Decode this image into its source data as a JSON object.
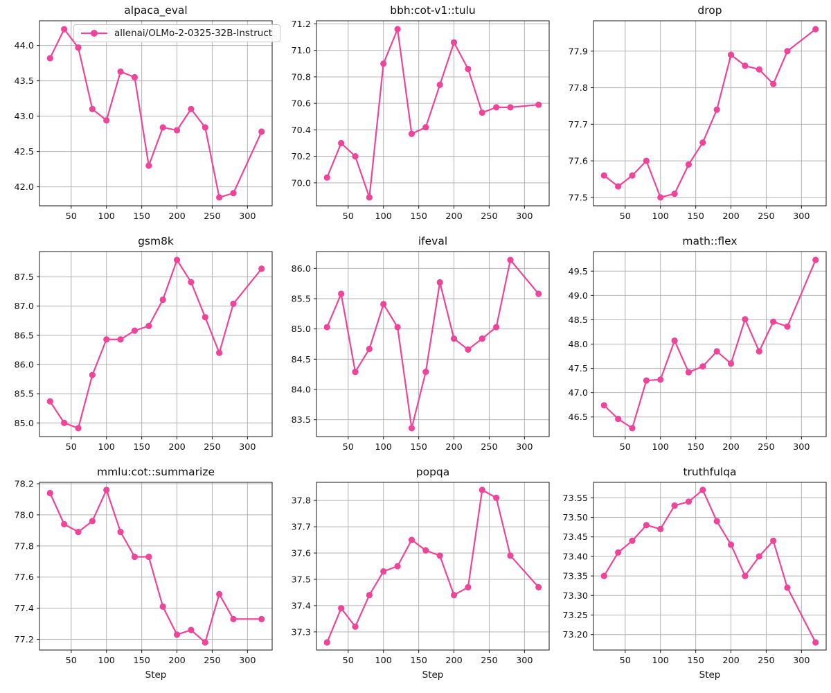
{
  "figure": {
    "xlabel": "Step",
    "legend_label": "allenai/OLMo-2-0325-32B-Instruct",
    "accent_color": "#ee4499",
    "grid_color": "#b3b3b3",
    "spine_color": "#1a1a1a",
    "steps": [
      20,
      40,
      60,
      80,
      100,
      120,
      140,
      160,
      180,
      200,
      220,
      240,
      260,
      280,
      320
    ],
    "xticks": [
      50,
      100,
      150,
      200,
      250,
      300
    ],
    "xlim": [
      5,
      335
    ]
  },
  "chart_data": [
    {
      "type": "line",
      "title": "alpaca_eval",
      "values": [
        43.82,
        44.23,
        43.97,
        43.1,
        42.94,
        43.63,
        43.55,
        42.3,
        42.84,
        42.8,
        43.1,
        42.84,
        41.85,
        41.91,
        42.78
      ],
      "yticks": [
        42.0,
        42.5,
        43.0,
        43.5,
        44.0
      ],
      "ytick_labels": [
        "42.0",
        "42.5",
        "43.0",
        "43.5",
        "44.0"
      ],
      "ylim": [
        41.731,
        44.349
      ],
      "grid": true,
      "has_legend": true
    },
    {
      "type": "line",
      "title": "bbh:cot-v1::tulu",
      "values": [
        70.04,
        70.3,
        70.2,
        69.89,
        70.9,
        71.16,
        70.37,
        70.42,
        70.74,
        71.06,
        70.86,
        70.53,
        70.57,
        70.57,
        70.59
      ],
      "yticks": [
        70.0,
        70.2,
        70.4,
        70.6,
        70.8,
        71.0,
        71.2
      ],
      "ytick_labels": [
        "70.0",
        "70.2",
        "70.4",
        "70.6",
        "70.8",
        "71.0",
        "71.2"
      ],
      "ylim": [
        69.8265,
        71.2235
      ],
      "grid": true,
      "has_legend": false
    },
    {
      "type": "line",
      "title": "drop",
      "values": [
        77.56,
        77.53,
        77.56,
        77.6,
        77.5,
        77.51,
        77.59,
        77.65,
        77.74,
        77.89,
        77.86,
        77.85,
        77.81,
        77.9,
        77.96
      ],
      "yticks": [
        77.5,
        77.6,
        77.7,
        77.8,
        77.9
      ],
      "ytick_labels": [
        "77.5",
        "77.6",
        "77.7",
        "77.8",
        "77.9"
      ],
      "ylim": [
        77.477,
        77.983
      ],
      "grid": true,
      "has_legend": false
    },
    {
      "type": "line",
      "title": "gsm8k",
      "values": [
        85.37,
        85.0,
        84.91,
        85.82,
        86.43,
        86.43,
        86.58,
        86.66,
        87.11,
        87.79,
        87.41,
        86.81,
        86.2,
        87.04,
        87.64
      ],
      "yticks": [
        85.0,
        85.5,
        86.0,
        86.5,
        87.0,
        87.5
      ],
      "ytick_labels": [
        "85.0",
        "85.5",
        "86.0",
        "86.5",
        "87.0",
        "87.5"
      ],
      "ylim": [
        84.766,
        87.934
      ],
      "grid": true,
      "has_legend": false
    },
    {
      "type": "line",
      "title": "ifeval",
      "values": [
        85.03,
        85.58,
        84.29,
        84.67,
        85.41,
        85.03,
        83.36,
        84.29,
        85.77,
        84.84,
        84.66,
        84.84,
        85.03,
        86.14,
        85.58
      ],
      "yticks": [
        83.5,
        84.0,
        84.5,
        85.0,
        85.5,
        86.0
      ],
      "ytick_labels": [
        "83.5",
        "84.0",
        "84.5",
        "85.0",
        "85.5",
        "86.0"
      ],
      "ylim": [
        83.221,
        86.279
      ],
      "grid": true,
      "has_legend": false
    },
    {
      "type": "line",
      "title": "math::flex",
      "values": [
        46.74,
        46.46,
        46.27,
        47.25,
        47.27,
        48.07,
        47.42,
        47.54,
        47.85,
        47.6,
        48.51,
        47.85,
        48.46,
        48.36,
        49.73
      ],
      "yticks": [
        46.5,
        47.0,
        47.5,
        48.0,
        48.5,
        49.0,
        49.5
      ],
      "ytick_labels": [
        "46.5",
        "47.0",
        "47.5",
        "48.0",
        "48.5",
        "49.0",
        "49.5"
      ],
      "ylim": [
        46.097,
        49.903
      ],
      "grid": true,
      "has_legend": false
    },
    {
      "type": "line",
      "title": "mmlu:cot::summarize",
      "values": [
        78.14,
        77.94,
        77.89,
        77.96,
        78.16,
        77.89,
        77.73,
        77.73,
        77.41,
        77.23,
        77.26,
        77.18,
        77.49,
        77.33,
        77.33
      ],
      "yticks": [
        77.2,
        77.4,
        77.6,
        77.8,
        78.0,
        78.2
      ],
      "ytick_labels": [
        "77.2",
        "77.4",
        "77.6",
        "77.8",
        "78.0",
        "78.2"
      ],
      "ylim": [
        77.131,
        78.209
      ],
      "grid": true,
      "has_legend": false
    },
    {
      "type": "line",
      "title": "popqa",
      "values": [
        37.26,
        37.39,
        37.32,
        37.44,
        37.53,
        37.55,
        37.65,
        37.61,
        37.59,
        37.44,
        37.47,
        37.84,
        37.81,
        37.59,
        37.47
      ],
      "yticks": [
        37.3,
        37.4,
        37.5,
        37.6,
        37.7,
        37.8
      ],
      "ytick_labels": [
        "37.3",
        "37.4",
        "37.5",
        "37.6",
        "37.7",
        "37.8"
      ],
      "ylim": [
        37.231,
        37.869
      ],
      "grid": true,
      "has_legend": false
    },
    {
      "type": "line",
      "title": "truthfulqa",
      "values": [
        73.35,
        73.41,
        73.44,
        73.48,
        73.47,
        73.53,
        73.54,
        73.57,
        73.49,
        73.43,
        73.35,
        73.4,
        73.44,
        73.32,
        73.18
      ],
      "yticks": [
        73.2,
        73.25,
        73.3,
        73.35,
        73.4,
        73.45,
        73.5,
        73.55
      ],
      "ytick_labels": [
        "73.20",
        "73.25",
        "73.30",
        "73.35",
        "73.40",
        "73.45",
        "73.50",
        "73.55"
      ],
      "ylim": [
        73.1605,
        73.5895
      ],
      "grid": true,
      "has_legend": false
    }
  ]
}
